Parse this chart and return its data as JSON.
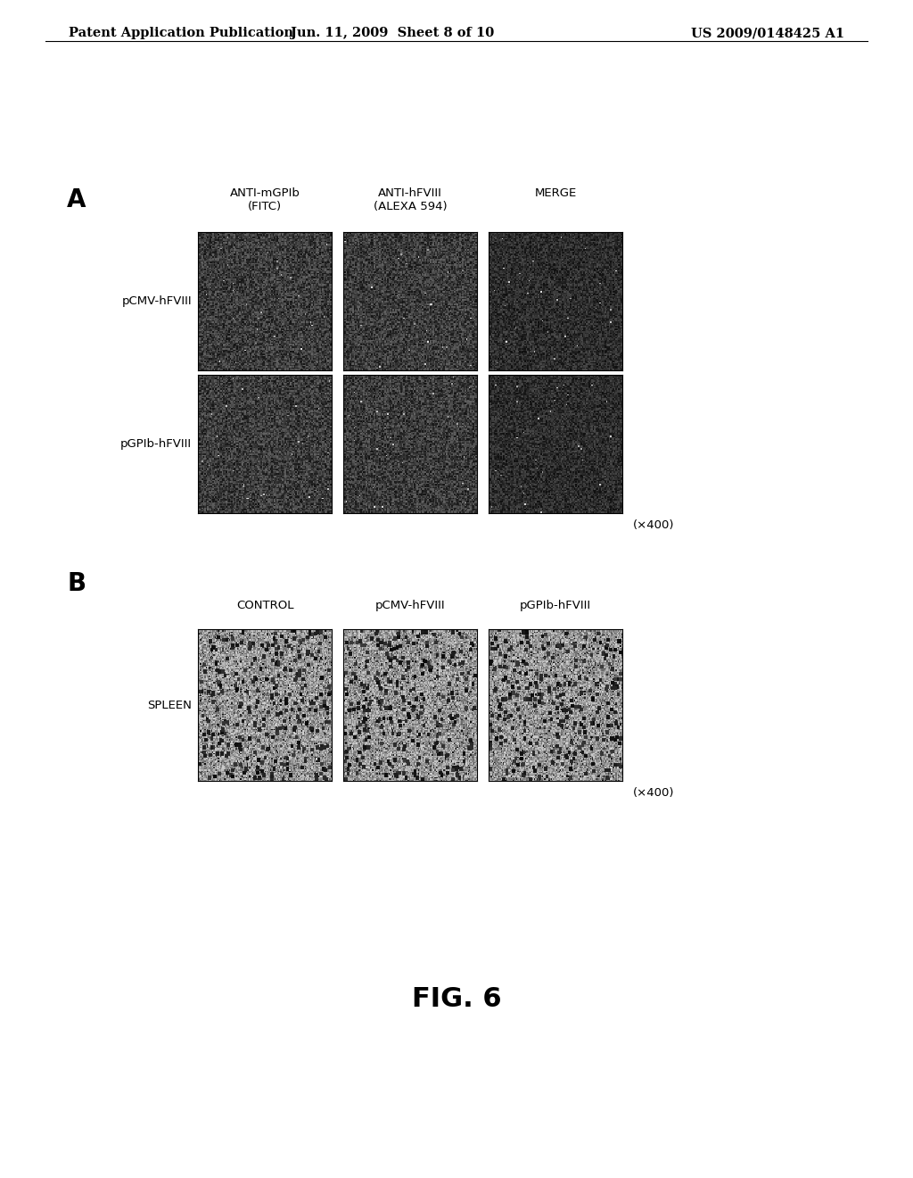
{
  "header_left": "Patent Application Publication",
  "header_mid": "Jun. 11, 2009  Sheet 8 of 10",
  "header_right": "US 2009/0148425 A1",
  "header_fontsize": 10.5,
  "fig_label_A": "A",
  "fig_label_B": "B",
  "fig_label_fontsize": 20,
  "panel_A_col_labels": [
    "ANTI-mGPIb\n(FITC)",
    "ANTI-hFVIII\n(ALEXA 594)",
    "MERGE"
  ],
  "panel_A_row_labels": [
    "pCMV-hFVIII",
    "pGPIb-hFVIII"
  ],
  "panel_B_col_labels": [
    "CONTROL",
    "pCMV-hFVIII",
    "pGPIb-hFVIII"
  ],
  "panel_B_row_labels": [
    "SPLEEN"
  ],
  "magnification": "(×400)",
  "fig_title": "FIG. 6",
  "background_color": "#ffffff",
  "text_color": "#000000",
  "col_label_fontsize": 9.5,
  "row_label_fontsize": 9.5,
  "mag_fontsize": 9.5,
  "title_fontsize": 22
}
